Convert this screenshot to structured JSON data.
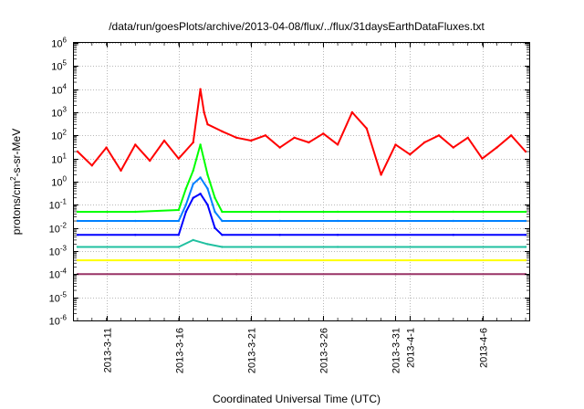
{
  "chart_data": {
    "type": "line",
    "title": "/data/run/goesPlots/archive/2013-04-08/flux/../flux/31daysEarthDataFluxes.txt",
    "xlabel": "Coordinated Universal Time (UTC)",
    "ylabel": "protons/cm2-s-sr-MeV",
    "ylabel_parts": [
      "protons/cm",
      "2",
      "-s-sr-MeV"
    ],
    "y_scale": "log",
    "ylim": [
      1e-06,
      1000000.0
    ],
    "xlim": [
      "2013-03-08T18:00",
      "2013-04-09T06:00"
    ],
    "grid": true,
    "legend": "none",
    "y_ticks": [
      {
        "exp": "-6",
        "value": 1e-06
      },
      {
        "exp": "-5",
        "value": 1e-05
      },
      {
        "exp": "-4",
        "value": 0.0001
      },
      {
        "exp": "-3",
        "value": 0.001
      },
      {
        "exp": "-2",
        "value": 0.01
      },
      {
        "exp": "-1",
        "value": 0.1
      },
      {
        "exp": "0",
        "value": 1
      },
      {
        "exp": "1",
        "value": 10.0
      },
      {
        "exp": "2",
        "value": 100.0
      },
      {
        "exp": "3",
        "value": 1000.0
      },
      {
        "exp": "4",
        "value": 10000.0
      },
      {
        "exp": "5",
        "value": 100000.0
      },
      {
        "exp": "6",
        "value": 1000000.0
      }
    ],
    "x_ticks": [
      {
        "label": "2013-3-11",
        "date": "2013-03-11"
      },
      {
        "label": "2013-3-16",
        "date": "2013-03-16"
      },
      {
        "label": "2013-3-21",
        "date": "2013-03-21"
      },
      {
        "label": "2013-3-26",
        "date": "2013-03-26"
      },
      {
        "label": "2013-3-31",
        "date": "2013-03-31"
      },
      {
        "label": "2013-4-1",
        "date": "2013-04-01"
      },
      {
        "label": "2013-4-6",
        "date": "2013-04-06"
      }
    ],
    "series": [
      {
        "color": "#ff0000",
        "x": [
          "2013-03-09",
          "2013-03-10",
          "2013-03-11",
          "2013-03-12",
          "2013-03-13",
          "2013-03-14",
          "2013-03-15",
          "2013-03-16",
          "2013-03-17",
          "2013-03-17T12:00",
          "2013-03-17T18:00",
          "2013-03-18",
          "2013-03-19",
          "2013-03-20",
          "2013-03-21",
          "2013-03-22",
          "2013-03-23",
          "2013-03-24",
          "2013-03-25",
          "2013-03-26",
          "2013-03-27",
          "2013-03-28",
          "2013-03-29",
          "2013-03-30",
          "2013-03-31",
          "2013-04-01",
          "2013-04-02",
          "2013-04-03",
          "2013-04-04",
          "2013-04-05",
          "2013-04-06",
          "2013-04-07",
          "2013-04-08",
          "2013-04-09"
        ],
        "y": [
          20,
          5,
          30,
          3,
          40,
          8,
          60,
          10,
          50,
          10000,
          1000,
          300,
          150,
          80,
          60,
          100,
          30,
          80,
          50,
          120,
          40,
          1000,
          200,
          2,
          40,
          15,
          50,
          100,
          30,
          80,
          10,
          30,
          100,
          20
        ]
      },
      {
        "color": "#00ff00",
        "x": [
          "2013-03-09",
          "2013-03-13",
          "2013-03-16",
          "2013-03-16T12:00",
          "2013-03-17",
          "2013-03-17T12:00",
          "2013-03-18",
          "2013-03-18T12:00",
          "2013-03-19",
          "2013-03-23",
          "2013-03-27",
          "2013-03-31",
          "2013-04-04",
          "2013-04-09"
        ],
        "y": [
          0.05,
          0.05,
          0.06,
          0.5,
          3,
          40,
          2,
          0.2,
          0.05,
          0.05,
          0.05,
          0.05,
          0.05,
          0.05
        ]
      },
      {
        "color": "#0080ff",
        "x": [
          "2013-03-09",
          "2013-03-13",
          "2013-03-16",
          "2013-03-16T12:00",
          "2013-03-17",
          "2013-03-17T12:00",
          "2013-03-18",
          "2013-03-18T12:00",
          "2013-03-19",
          "2013-03-23",
          "2013-03-27",
          "2013-03-31",
          "2013-04-04",
          "2013-04-09"
        ],
        "y": [
          0.02,
          0.02,
          0.02,
          0.1,
          0.8,
          1.5,
          0.5,
          0.05,
          0.02,
          0.02,
          0.02,
          0.02,
          0.02,
          0.02
        ]
      },
      {
        "color": "#0000ff",
        "x": [
          "2013-03-09",
          "2013-03-13",
          "2013-03-16",
          "2013-03-16T12:00",
          "2013-03-17",
          "2013-03-17T12:00",
          "2013-03-18",
          "2013-03-18T12:00",
          "2013-03-19",
          "2013-03-23",
          "2013-03-27",
          "2013-03-31",
          "2013-04-04",
          "2013-04-09"
        ],
        "y": [
          0.005,
          0.005,
          0.005,
          0.05,
          0.2,
          0.3,
          0.1,
          0.01,
          0.005,
          0.005,
          0.005,
          0.005,
          0.005,
          0.005
        ]
      },
      {
        "color": "#20c0a0",
        "x": [
          "2013-03-09",
          "2013-03-16",
          "2013-03-17",
          "2013-03-18",
          "2013-03-19",
          "2013-03-27",
          "2013-04-09"
        ],
        "y": [
          0.0015,
          0.0015,
          0.003,
          0.002,
          0.0015,
          0.0015,
          0.0015
        ]
      },
      {
        "color": "#ffff00",
        "x": [
          "2013-03-09",
          "2013-03-20",
          "2013-03-31",
          "2013-04-09"
        ],
        "y": [
          0.0004,
          0.0004,
          0.0004,
          0.0004
        ]
      },
      {
        "color": "#993366",
        "x": [
          "2013-03-09",
          "2013-03-20",
          "2013-03-31",
          "2013-04-09"
        ],
        "y": [
          0.0001,
          0.0001,
          0.0001,
          0.0001
        ]
      }
    ]
  }
}
